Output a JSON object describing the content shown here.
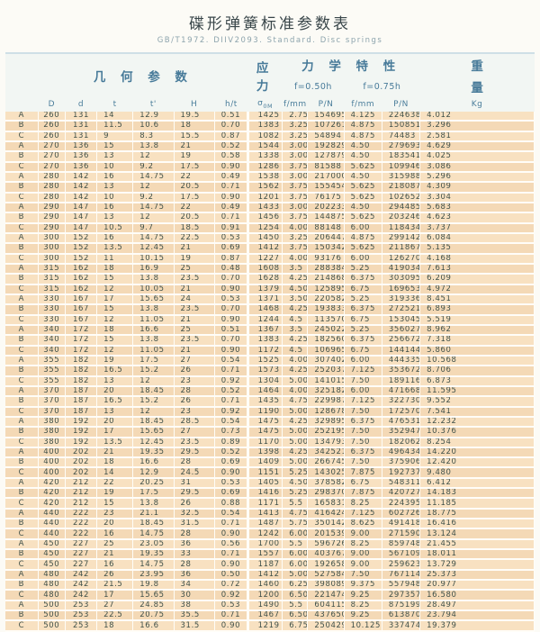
{
  "page": {
    "title": "碟形弹簧标准参数表",
    "subtitle": "GB/T1972.  DIIV2093.  Standard.  Disc springs"
  },
  "table": {
    "group_headers": {
      "geometry": "几 何 参 数",
      "stress": "应 力",
      "mechanical": "力 学 特 性",
      "weight_top": "重",
      "weight_bottom": "量"
    },
    "sub_headers": {
      "f050": "f=0.50h",
      "f075": "f=0.75h"
    },
    "column_headers": {
      "D": "D",
      "d": "d",
      "t": "t",
      "t_prime": "t'",
      "H": "H",
      "h_t": "h/t",
      "sigma": "σ",
      "sigma_sub": "0M",
      "f_mm_1": "f/mm",
      "p_n_1": "P/N",
      "f_mm_2": "f/mm",
      "p_n_2": "P/N",
      "kg": "Kg"
    },
    "column_keys": [
      "series",
      "D",
      "d",
      "t",
      "t-prime",
      "H",
      "h-t",
      "sigma-0M",
      "f-050",
      "P-050",
      "f-075",
      "P-075",
      "weight-kg"
    ],
    "rows": [
      [
        "A",
        "260",
        "131",
        "14",
        "12.9",
        "19.5",
        "0.51",
        "1425",
        "2.75",
        "154695",
        "4.125",
        "224638",
        "4.012"
      ],
      [
        "B",
        "260",
        "131",
        "11.5",
        "10.6",
        "18",
        "0.70",
        "1383",
        "3.25",
        "107261",
        "4.875",
        "150851",
        "3.296"
      ],
      [
        "C",
        "260",
        "131",
        "9",
        "8.3",
        "15.5",
        "0.87",
        "1082",
        "3.25",
        "54894",
        "4.875",
        "74483",
        "2.581"
      ],
      [
        "A",
        "270",
        "136",
        "15",
        "13.8",
        "21",
        "0.52",
        "1544",
        "3.00",
        "192829",
        "4.50",
        "279693",
        "4.629"
      ],
      [
        "B",
        "270",
        "136",
        "13",
        "12",
        "19",
        "0.58",
        "1338",
        "3.00",
        "127879",
        "4.50",
        "183541",
        "4.025"
      ],
      [
        "C",
        "270",
        "136",
        "10",
        "9.2",
        "17.5",
        "0.90",
        "1286",
        "3.75",
        "81588",
        "5.625",
        "109946",
        "3.086"
      ],
      [
        "A",
        "280",
        "142",
        "16",
        "14.75",
        "22",
        "0.49",
        "1538",
        "3.00",
        "217000",
        "4.50",
        "315988",
        "5.296"
      ],
      [
        "B",
        "280",
        "142",
        "13",
        "12",
        "20.5",
        "0.71",
        "1562",
        "3.75",
        "155454",
        "5.625",
        "218087",
        "4.309"
      ],
      [
        "C",
        "280",
        "142",
        "10",
        "9.2",
        "17.5",
        "0.90",
        "1201",
        "3.75",
        "76175",
        "5.625",
        "102652",
        "3.304"
      ],
      [
        "A",
        "290",
        "147",
        "16",
        "14.75",
        "22",
        "0.49",
        "1433",
        "3.00",
        "202233",
        "4.50",
        "294485",
        "5.683"
      ],
      [
        "B",
        "290",
        "147",
        "13",
        "12",
        "20.5",
        "0.71",
        "1456",
        "3.75",
        "144875",
        "5.625",
        "203246",
        "4.623"
      ],
      [
        "C",
        "290",
        "147",
        "10.5",
        "9.7",
        "18.5",
        "0.91",
        "1254",
        "4.00",
        "88148",
        "6.00",
        "118434",
        "3.737"
      ],
      [
        "A",
        "300",
        "152",
        "16",
        "14.75",
        "22.5",
        "0.53",
        "1450",
        "3.25",
        "206447",
        "4.875",
        "299142",
        "6.084"
      ],
      [
        "B",
        "300",
        "152",
        "13.5",
        "12.45",
        "21",
        "0.69",
        "1412",
        "3.75",
        "150342",
        "5.625",
        "211867",
        "5.135"
      ],
      [
        "C",
        "300",
        "152",
        "11",
        "10.15",
        "19",
        "0.87",
        "1227",
        "4.00",
        "93176",
        "6.00",
        "126270",
        "4.168"
      ],
      [
        "A",
        "315",
        "162",
        "18",
        "16.9",
        "25",
        "0.48",
        "1608",
        "3.5",
        "288384",
        "5.25",
        "419034",
        "7.613"
      ],
      [
        "B",
        "315",
        "162",
        "15",
        "13.8",
        "23.5",
        "0.70",
        "1628",
        "4.25",
        "214868",
        "6.375",
        "303095",
        "6.209"
      ],
      [
        "C",
        "315",
        "162",
        "12",
        "10.05",
        "21",
        "0.90",
        "1379",
        "4.50",
        "125895",
        "6.75",
        "169653",
        "4.972"
      ],
      [
        "A",
        "330",
        "167",
        "17",
        "15.65",
        "24",
        "0.53",
        "1371",
        "3.50",
        "220582",
        "5.25",
        "319336",
        "8.451"
      ],
      [
        "B",
        "330",
        "167",
        "15",
        "13.8",
        "23.5",
        "0.70",
        "1468",
        "4.25",
        "193833",
        "6.375",
        "272521",
        "6.893"
      ],
      [
        "C",
        "330",
        "167",
        "12",
        "11.05",
        "21",
        "0.90",
        "1244",
        "4.5",
        "113570",
        "6.75",
        "153045",
        "5.519"
      ],
      [
        "A",
        "340",
        "172",
        "18",
        "16.6",
        "25",
        "0.51",
        "1367",
        "3.5",
        "245022",
        "5.25",
        "356027",
        "8.962"
      ],
      [
        "B",
        "340",
        "172",
        "15",
        "13.8",
        "23.5",
        "0.70",
        "1383",
        "4.25",
        "182560",
        "6.375",
        "256672",
        "7.318"
      ],
      [
        "C",
        "340",
        "172",
        "12",
        "11.05",
        "21",
        "0.90",
        "1172",
        "4.5",
        "106965",
        "6.75",
        "144144",
        "5.860"
      ],
      [
        "A",
        "355",
        "182",
        "19",
        "17.5",
        "27",
        "0.54",
        "1525",
        "4.00",
        "307402",
        "6.00",
        "444335",
        "10.568"
      ],
      [
        "B",
        "355",
        "182",
        "16.5",
        "15.2",
        "26",
        "0.71",
        "1573",
        "4.25",
        "252037",
        "7.125",
        "353672",
        "8.706"
      ],
      [
        "C",
        "355",
        "182",
        "13",
        "12",
        "23",
        "0.92",
        "1304",
        "5.00",
        "141015",
        "7.50",
        "189116",
        "6.873"
      ],
      [
        "A",
        "370",
        "187",
        "20",
        "18.45",
        "28",
        "0.52",
        "1464",
        "4.00",
        "325182",
        "6.00",
        "471668",
        "11.595"
      ],
      [
        "B",
        "370",
        "187",
        "16.5",
        "15.2",
        "26",
        "0.71",
        "1435",
        "4.75",
        "229987",
        "7.125",
        "322730",
        "9.552"
      ],
      [
        "C",
        "370",
        "187",
        "13",
        "12",
        "23",
        "0.92",
        "1190",
        "5.00",
        "128678",
        "7.50",
        "172570",
        "7.541"
      ],
      [
        "A",
        "380",
        "192",
        "20",
        "18.45",
        "28.5",
        "0.54",
        "1475",
        "4.25",
        "329895",
        "6.375",
        "476531",
        "12.232"
      ],
      [
        "B",
        "380",
        "192",
        "17",
        "15.65",
        "27",
        "0.73",
        "1475",
        "5.00",
        "252195",
        "7.50",
        "352947",
        "10.376"
      ],
      [
        "C",
        "380",
        "192",
        "13.5",
        "12.45",
        "23.5",
        "0.89",
        "1170",
        "5.00",
        "134793",
        "7.50",
        "182062",
        "8.254"
      ],
      [
        "A",
        "400",
        "202",
        "21",
        "19.35",
        "29.5",
        "0.52",
        "1398",
        "4.25",
        "342521",
        "6.375",
        "496434",
        "14.220"
      ],
      [
        "B",
        "400",
        "202",
        "18",
        "16.6",
        "28",
        "0.69",
        "1409",
        "5.00",
        "266745",
        "7.50",
        "375906",
        "12.420"
      ],
      [
        "C",
        "400",
        "202",
        "14",
        "12.9",
        "24.5",
        "0.90",
        "1151",
        "5.25",
        "143025",
        "7.875",
        "192737",
        "9.480"
      ],
      [
        "A",
        "420",
        "212",
        "22",
        "20.25",
        "31",
        "0.53",
        "1405",
        "4.50",
        "378582",
        "6.75",
        "548311",
        "6.412"
      ],
      [
        "B",
        "420",
        "212",
        "19",
        "17.5",
        "29.5",
        "0.69",
        "1416",
        "5.25",
        "298370",
        "7.875",
        "420727",
        "14.183"
      ],
      [
        "C",
        "420",
        "212",
        "15",
        "13.8",
        "26",
        "0.88",
        "1171",
        "5.5",
        "165831",
        "8.25",
        "224395",
        "11.185"
      ],
      [
        "A",
        "440",
        "222",
        "23",
        "21.1",
        "32.5",
        "0.54",
        "1413",
        "4.75",
        "416424",
        "7.125",
        "602726",
        "18.775"
      ],
      [
        "B",
        "440",
        "222",
        "20",
        "18.45",
        "31.5",
        "0.71",
        "1487",
        "5.75",
        "350142",
        "8.625",
        "491418",
        "16.416"
      ],
      [
        "C",
        "440",
        "222",
        "16",
        "14.75",
        "28",
        "0.90",
        "1242",
        "6.00",
        "201539",
        "9.00",
        "271590",
        "13.124"
      ],
      [
        "A",
        "450",
        "227",
        "25",
        "23.05",
        "36",
        "0.56",
        "1700",
        "5.5",
        "596726",
        "8.25",
        "859748",
        "21.455"
      ],
      [
        "B",
        "450",
        "227",
        "21",
        "19.35",
        "33",
        "0.71",
        "1557",
        "6.00",
        "403767",
        "9.00",
        "567109",
        "18.011"
      ],
      [
        "C",
        "450",
        "227",
        "16",
        "14.75",
        "28",
        "0.90",
        "1187",
        "6.00",
        "192658",
        "9.00",
        "259623",
        "13.729"
      ],
      [
        "A",
        "480",
        "242",
        "26",
        "23.95",
        "36",
        "0.50",
        "1412",
        "5.00",
        "527584",
        "7.50",
        "767114",
        "25.373"
      ],
      [
        "B",
        "480",
        "242",
        "21.5",
        "19.8",
        "34",
        "0.72",
        "1460",
        "6.25",
        "398089",
        "9.375",
        "557948",
        "20.977"
      ],
      [
        "C",
        "480",
        "242",
        "17",
        "15.65",
        "30",
        "0.92",
        "1200",
        "6.50",
        "221474",
        "9.25",
        "297357",
        "16.580"
      ],
      [
        "A",
        "500",
        "253",
        "27",
        "24.85",
        "38",
        "0.53",
        "1490",
        "5.5",
        "604115",
        "8.25",
        "875199",
        "28.497"
      ],
      [
        "B",
        "500",
        "253",
        "22.5",
        "20.75",
        "35.5",
        "0.71",
        "1467",
        "6.50",
        "437650",
        "9.25",
        "613870",
        "23.794"
      ],
      [
        "C",
        "500",
        "253",
        "18",
        "16.6",
        "31.5",
        "0.90",
        "1219",
        "6.75",
        "250429",
        "10.125",
        "337474",
        "19.379"
      ]
    ]
  },
  "colors": {
    "row_bg_even": "#f8e1c1",
    "row_bg_odd": "#f4d9b6",
    "header_band_bg": "#f2f6f3",
    "header_text": "#477a99",
    "data_text": "#40514a",
    "separator": "#fffdf8",
    "top_rule": "#cfdfe6"
  }
}
